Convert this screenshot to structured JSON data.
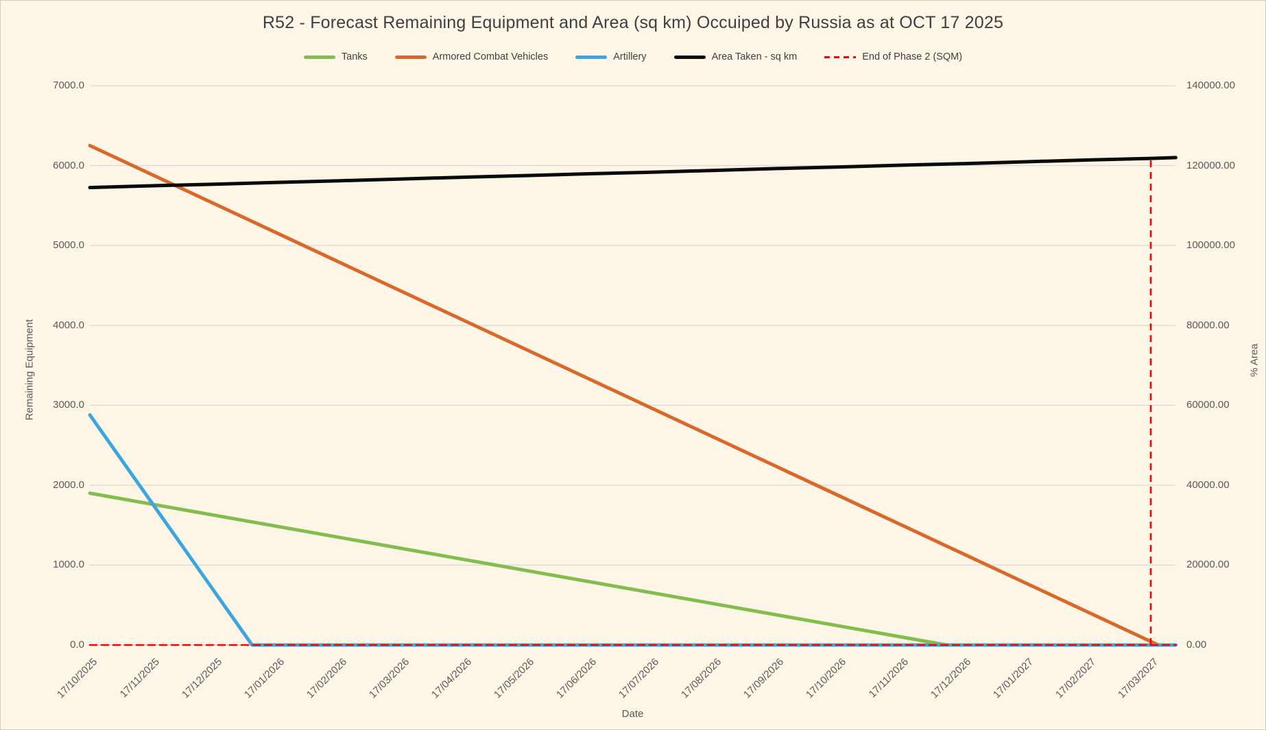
{
  "title": "R52 - Forecast Remaining Equipment and Area (sq km) Occuiped by Russia as at OCT 17 2025",
  "axes": {
    "x_title": "Date",
    "y_left_title": "Remaining Equipment",
    "y_right_title": "% Area",
    "y_left_tick_labels": [
      "0.0",
      "1000.0",
      "2000.0",
      "3000.0",
      "4000.0",
      "5000.0",
      "6000.0",
      "7000.0"
    ],
    "y_right_tick_labels": [
      "0.00",
      "20000.00",
      "40000.00",
      "60000.00",
      "80000.00",
      "100000.00",
      "120000.00",
      "140000.00"
    ]
  },
  "legend": [
    {
      "label": "Tanks",
      "color": "#83BC4F",
      "dashed": false
    },
    {
      "label": "Armored Combat Vehicles",
      "color": "#D8692A",
      "dashed": false
    },
    {
      "label": "Artillery",
      "color": "#3AA5DE",
      "dashed": false
    },
    {
      "label": "Area Taken - sq km",
      "color": "#0a0a0a",
      "dashed": false
    },
    {
      "label": "End of Phase 2 (SQM)",
      "color": "#FF0000",
      "dashed": true
    }
  ],
  "chart_data": {
    "type": "line",
    "title": "R52 - Forecast Remaining Equipment and Area (sq km) Occuiped by Russia as at OCT 17 2025",
    "xlabel": "Date",
    "ylabel_left": "Remaining Equipment",
    "ylabel_right": "% Area",
    "ylim_left": [
      0,
      7000
    ],
    "ylim_right": [
      0,
      140000
    ],
    "grid": "horizontal",
    "legend_position": "top",
    "x": [
      "17/10/2025",
      "17/11/2025",
      "17/12/2025",
      "17/01/2026",
      "17/02/2026",
      "17/03/2026",
      "17/04/2026",
      "17/05/2026",
      "17/06/2026",
      "17/07/2026",
      "17/08/2026",
      "17/09/2026",
      "17/10/2026",
      "17/11/2026",
      "17/12/2026",
      "17/01/2027",
      "17/02/2027",
      "17/03/2027"
    ],
    "series": [
      {
        "name": "Tanks",
        "axis": "left",
        "color": "#83BC4F",
        "values": [
          1900,
          1760,
          1620,
          1485,
          1345,
          1210,
          1070,
          930,
          790,
          655,
          515,
          380,
          240,
          100,
          0,
          0,
          0,
          0
        ],
        "zero_at_month": 13.73,
        "end_value": 0
      },
      {
        "name": "Armored Combat Vehicles",
        "axis": "left",
        "color": "#D8692A",
        "values": [
          6250,
          5885,
          5520,
          5155,
          4790,
          4425,
          4060,
          3695,
          3330,
          2965,
          2600,
          2235,
          1870,
          1505,
          1140,
          775,
          410,
          45
        ],
        "zero_at_month": 17.12,
        "end_value": 0
      },
      {
        "name": "Artillery",
        "axis": "left",
        "color": "#3AA5DE",
        "values": [
          2880,
          1770,
          665,
          0,
          0,
          0,
          0,
          0,
          0,
          0,
          0,
          0,
          0,
          0,
          0,
          0,
          0,
          0
        ],
        "zero_at_month": 2.6,
        "end_value": 0
      },
      {
        "name": "Area Taken - sq km",
        "axis": "right",
        "color": "#0a0a0a",
        "values": [
          114500,
          114950,
          115350,
          115800,
          116200,
          116650,
          117100,
          117500,
          117950,
          118350,
          118800,
          119250,
          119650,
          120100,
          120500,
          120950,
          121400,
          121800
        ],
        "end_value": 122000
      },
      {
        "name": "End of Phase 2 (SQM)",
        "axis": "right",
        "color": "#FF0000",
        "dashed": true,
        "values": [
          0,
          0,
          0,
          0,
          0,
          0,
          0,
          0,
          0,
          0,
          0,
          0,
          0,
          0,
          0,
          0,
          0,
          0
        ],
        "end_value": 0,
        "spike": {
          "date": "17/03/2027",
          "month_index": 17,
          "value": 121800
        }
      }
    ]
  }
}
